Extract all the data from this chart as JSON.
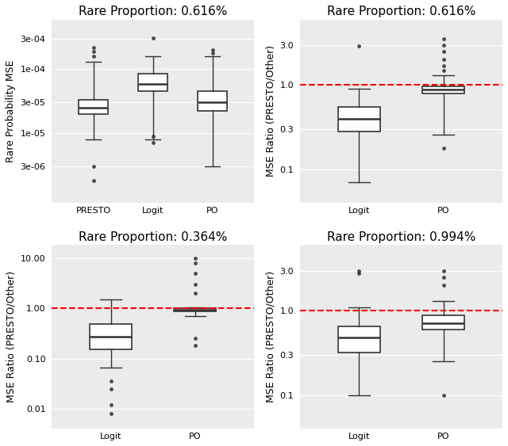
{
  "panels": [
    {
      "title": "Rare Proportion: 0.616%",
      "ylabel": "Rare Probability MSE",
      "categories": [
        "PRESTO",
        "Logit",
        "PO"
      ],
      "yticks": [
        3e-06,
        1e-05,
        3e-05,
        0.0001,
        0.0003
      ],
      "yticklabels": [
        "3e-06",
        "1e-05",
        "3e-05",
        "1e-04",
        "3e-04"
      ],
      "ylim": [
        8e-07,
        0.0006
      ],
      "ref_line": null,
      "boxes": [
        {
          "q1": 2e-05,
          "median": 2.5e-05,
          "q3": 3.3e-05,
          "whislo": 8e-06,
          "whishi": 0.00013,
          "fliers_low": [
            3e-06,
            1.8e-06
          ],
          "fliers_high": [
            0.00016,
            0.00019,
            0.00022
          ]
        },
        {
          "q1": 4.5e-05,
          "median": 5.8e-05,
          "q3": 8.5e-05,
          "whislo": 8e-06,
          "whishi": 0.00016,
          "fliers_low": [
            7e-06,
            9e-06
          ],
          "fliers_high": [
            0.00031
          ]
        },
        {
          "q1": 2.2e-05,
          "median": 3e-05,
          "q3": 4.5e-05,
          "whislo": 3e-06,
          "whishi": 0.00016,
          "fliers_low": [],
          "fliers_high": [
            0.00018,
            0.0002
          ]
        }
      ]
    },
    {
      "title": "Rare Proportion: 0.616%",
      "ylabel": "MSE Ratio (PRESTO/Other)",
      "categories": [
        "Logit",
        "PO"
      ],
      "yticks": [
        0.1,
        0.3,
        1.0,
        3.0
      ],
      "yticklabels": [
        "0.1",
        "0.3",
        "1.0",
        "3.0"
      ],
      "ylim": [
        0.04,
        6.0
      ],
      "ref_line": 1.0,
      "boxes": [
        {
          "q1": 0.28,
          "median": 0.4,
          "q3": 0.55,
          "whislo": 0.07,
          "whishi": 0.9,
          "fliers_low": [],
          "fliers_high": [
            2.9
          ]
        },
        {
          "q1": 0.8,
          "median": 0.88,
          "q3": 0.96,
          "whislo": 0.26,
          "whishi": 1.3,
          "fliers_low": [
            0.18
          ],
          "fliers_high": [
            1.5,
            1.7,
            2.0,
            2.5,
            3.0,
            3.5
          ]
        }
      ]
    },
    {
      "title": "Rare Proportion: 0.364%",
      "ylabel": "MSE Ratio (PRESTO/Other)",
      "categories": [
        "Logit",
        "PO"
      ],
      "yticks": [
        0.01,
        0.1,
        1.0,
        10.0
      ],
      "yticklabels": [
        "0.01",
        "0.10",
        "1.00",
        "10.00"
      ],
      "ylim": [
        0.004,
        18.0
      ],
      "ref_line": 1.0,
      "boxes": [
        {
          "q1": 0.15,
          "median": 0.27,
          "q3": 0.48,
          "whislo": 0.065,
          "whishi": 1.5,
          "fliers_low": [
            0.008,
            0.012,
            0.025,
            0.035
          ],
          "fliers_high": []
        },
        {
          "q1": 0.88,
          "median": 0.95,
          "q3": 1.0,
          "whislo": 0.7,
          "whishi": 1.05,
          "fliers_low": [
            0.18,
            0.25
          ],
          "fliers_high": [
            2.0,
            3.0,
            5.0,
            8.0,
            10.0
          ]
        }
      ]
    },
    {
      "title": "Rare Proportion: 0.994%",
      "ylabel": "MSE Ratio (PRESTO/Other)",
      "categories": [
        "Logit",
        "PO"
      ],
      "yticks": [
        0.1,
        0.3,
        1.0,
        3.0
      ],
      "yticklabels": [
        "0.1",
        "0.3",
        "1.0",
        "3.0"
      ],
      "ylim": [
        0.04,
        6.0
      ],
      "ref_line": 1.0,
      "boxes": [
        {
          "q1": 0.32,
          "median": 0.48,
          "q3": 0.65,
          "whislo": 0.1,
          "whishi": 1.1,
          "fliers_low": [],
          "fliers_high": [
            2.8,
            3.0
          ]
        },
        {
          "q1": 0.6,
          "median": 0.72,
          "q3": 0.88,
          "whislo": 0.25,
          "whishi": 1.3,
          "fliers_low": [
            0.1
          ],
          "fliers_high": [
            2.0,
            2.5,
            3.0
          ]
        }
      ]
    }
  ],
  "bg_color": "#EBEBEB",
  "box_color": "white",
  "box_edge_color": "#333333",
  "median_color": "#333333",
  "whisker_color": "#333333",
  "flier_color": "#333333",
  "ref_line_color": "#FF0000",
  "grid_color": "white",
  "title_fontsize": 11,
  "label_fontsize": 9,
  "tick_fontsize": 8
}
